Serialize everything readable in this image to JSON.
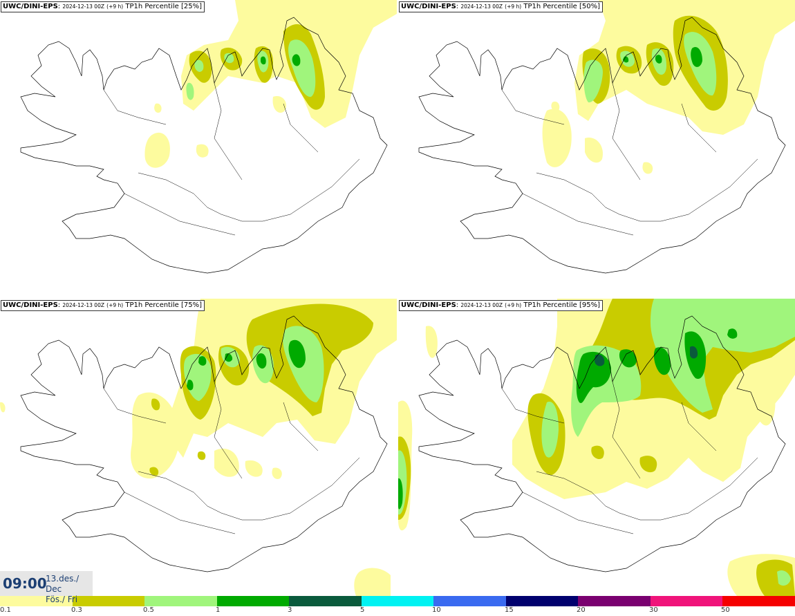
{
  "panels": [
    {
      "model": "UWC/DINI-EPS",
      "run": "2024-12-13 00Z",
      "lead": "(+9 h)",
      "field": "TP1h Percentile",
      "percentile": "[25%]"
    },
    {
      "model": "UWC/DINI-EPS",
      "run": "2024-12-13 00Z",
      "lead": "(+9 h)",
      "field": "TP1h Percentile",
      "percentile": "[50%]"
    },
    {
      "model": "UWC/DINI-EPS",
      "run": "2024-12-13 00Z",
      "lead": "(+9 h)",
      "field": "TP1h Percentile",
      "percentile": "[75%]"
    },
    {
      "model": "UWC/DINI-EPS",
      "run": "2024-12-13 00Z",
      "lead": "(+9 h)",
      "field": "TP1h Percentile",
      "percentile": "[95%]"
    }
  ],
  "time_box": {
    "time": "09:00",
    "date_line1": "13.des./ Dec",
    "date_line2": "Fös./ Fri"
  },
  "legend": {
    "labels": [
      "0.1",
      "0.3",
      "0.5",
      "1",
      "3",
      "5",
      "10",
      "15",
      "20",
      "30",
      "50"
    ],
    "colors": [
      "#fdfb9e",
      "#c9cc00",
      "#a0f57c",
      "#00aa00",
      "#0a5a3c",
      "#00f2f2",
      "#3a6af0",
      "#00006e",
      "#7a0070",
      "#f0147a",
      "#f50000"
    ]
  },
  "map_colors": {
    "land_outline": "#000000",
    "precip_0_1": "#fdfb9e",
    "precip_0_3": "#c9cc00",
    "precip_0_5": "#a0f57c",
    "precip_1": "#00aa00",
    "precip_3": "#0a5a3c"
  }
}
